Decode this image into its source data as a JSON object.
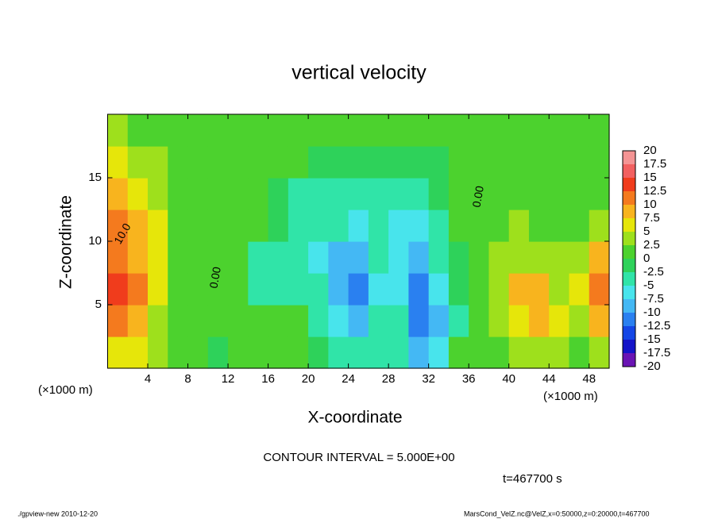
{
  "chart_data": {
    "type": "heatmap",
    "title": "vertical velocity",
    "xlabel": "X-coordinate",
    "ylabel": "Z-coordinate",
    "x_unit": "(×1000 m)",
    "xlim": [
      0,
      50
    ],
    "ylim": [
      0,
      20
    ],
    "xticks": [
      4,
      8,
      12,
      16,
      20,
      24,
      28,
      32,
      36,
      40,
      44,
      48
    ],
    "yticks": [
      5,
      10,
      15
    ],
    "x_edges": [
      0,
      2,
      4,
      6,
      8,
      10,
      12,
      14,
      16,
      18,
      20,
      22,
      24,
      26,
      28,
      30,
      32,
      34,
      36,
      38,
      40,
      42,
      44,
      46,
      48,
      50
    ],
    "y_edges": [
      0,
      2.5,
      5,
      7.5,
      10,
      12.5,
      15,
      17.5,
      20
    ],
    "z": [
      [
        5,
        5,
        3,
        2,
        1,
        -1,
        0,
        1,
        0,
        1,
        -1,
        -3,
        -5,
        -4,
        -3,
        -10,
        -6,
        0,
        1,
        2,
        4,
        4,
        3,
        2,
        4
      ],
      [
        12,
        8,
        4,
        2,
        1,
        0,
        1,
        1,
        1,
        0,
        -3,
        -6,
        -8,
        -5,
        -4,
        -12,
        -10,
        -3,
        1,
        3,
        6,
        9,
        5,
        4,
        8
      ],
      [
        13,
        10,
        6,
        2,
        1,
        0,
        0,
        -3,
        -5,
        -5,
        -5,
        -8,
        -12,
        -6,
        -6,
        -11,
        -6,
        -2,
        1,
        4,
        9,
        8,
        4,
        7,
        10
      ],
      [
        11,
        9,
        6,
        2,
        1,
        0,
        1,
        -3,
        -5,
        -5,
        -6,
        -9,
        -9,
        -5,
        -6,
        -9,
        -4,
        -1,
        1,
        3,
        4,
        4,
        3,
        4,
        8
      ],
      [
        12,
        8,
        5,
        2,
        1,
        0,
        1,
        0,
        -2,
        -3,
        -4,
        -5,
        -6,
        -5,
        -6,
        -7,
        -3,
        0,
        1,
        2,
        3,
        2,
        2,
        2,
        3
      ],
      [
        8,
        6,
        4,
        2,
        1,
        0,
        1,
        0,
        -2,
        -3,
        -3,
        -3,
        -4,
        -5,
        -5,
        -5,
        -2,
        0,
        1,
        1,
        2,
        2,
        1,
        1,
        2
      ],
      [
        5,
        4,
        3,
        2,
        1,
        0,
        1,
        1,
        0,
        0,
        -1,
        -1,
        -1,
        -2,
        -1,
        -1,
        -1,
        0,
        1,
        1,
        1,
        1,
        1,
        1,
        1
      ],
      [
        3,
        2,
        2,
        1,
        1,
        0,
        1,
        1,
        1,
        1,
        0,
        0,
        0,
        0,
        0,
        0,
        0,
        0,
        1,
        1,
        1,
        1,
        1,
        1,
        1
      ]
    ],
    "levels": [
      -20,
      -17.5,
      -15,
      -12.5,
      -10,
      -7.5,
      -5,
      -2.5,
      0,
      2.5,
      5,
      7.5,
      10,
      12.5,
      15,
      17.5,
      20
    ],
    "colors": [
      "#6a14b4",
      "#1414c8",
      "#1446e6",
      "#2a80f0",
      "#44b8f4",
      "#48e4ec",
      "#30e4a8",
      "#2ed25a",
      "#4cd22e",
      "#9ee01c",
      "#e6e60a",
      "#f8b41e",
      "#f47a1e",
      "#f03c1c",
      "#f26060",
      "#f49494"
    ],
    "contour_labels": [
      "10.0",
      "0.00",
      "0.00"
    ],
    "contour_interval": "CONTOUR INTERVAL = 5.000E+00",
    "time_label": "t=467700 s",
    "footer_left": "./gpview-new  2010-12-20",
    "footer_right": "MarsCond_VelZ.nc@VelZ,x=0:50000,z=0:20000,t=467700"
  }
}
